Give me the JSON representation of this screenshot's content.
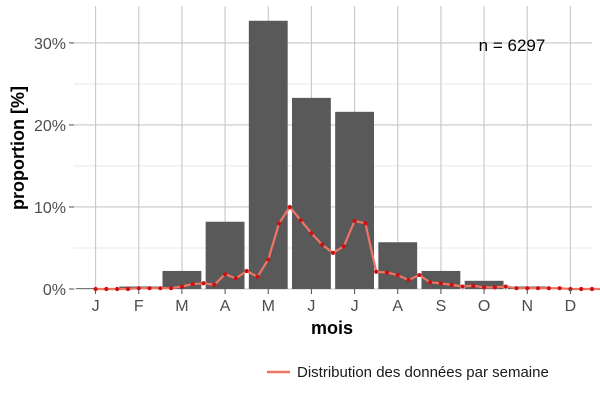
{
  "chart_data": {
    "type": "bar",
    "categories": [
      "J",
      "F",
      "M",
      "A",
      "M",
      "J",
      "J",
      "A",
      "S",
      "O",
      "N",
      "D"
    ],
    "values": [
      0.1,
      0.3,
      2.2,
      8.2,
      32.7,
      23.3,
      21.6,
      5.7,
      2.2,
      1.0,
      0.3,
      0.1
    ],
    "xlabel": "mois",
    "ylabel": "proportion [%]",
    "ylim": [
      0,
      34.5
    ],
    "yticks": [
      0,
      10,
      20,
      30
    ],
    "ytick_labels": [
      "0%",
      "10%",
      "20%",
      "30%"
    ],
    "grid": true,
    "bar_color": "#595959",
    "annotation": "n = 6297",
    "line_series": {
      "name": "Distribution des données par semaine",
      "color": "#ee7466",
      "point_color": "#cc1111",
      "x": [
        0.0,
        0.25,
        0.5,
        0.75,
        1.0,
        1.25,
        1.5,
        1.75,
        2.0,
        2.25,
        2.5,
        2.75,
        3.0,
        3.25,
        3.5,
        3.75,
        4.0,
        4.25,
        4.5,
        4.75,
        5.0,
        5.25,
        5.5,
        5.75,
        6.0,
        6.25,
        6.5,
        6.75,
        7.0,
        7.25,
        7.5,
        7.75,
        8.0,
        8.25,
        8.5,
        8.75,
        9.0,
        9.25,
        9.5,
        9.75,
        10.0,
        10.25,
        10.5,
        10.75,
        11.0,
        11.25,
        11.5,
        11.75
      ],
      "y": [
        0.0,
        0.0,
        0.0,
        0.0,
        0.1,
        0.1,
        0.1,
        0.1,
        0.3,
        0.6,
        0.7,
        0.5,
        1.8,
        1.3,
        2.2,
        1.5,
        3.6,
        8.0,
        10.0,
        8.4,
        6.8,
        5.4,
        4.4,
        5.2,
        8.3,
        8.0,
        2.1,
        2.0,
        1.7,
        1.1,
        1.7,
        0.8,
        0.7,
        0.5,
        0.3,
        0.4,
        0.2,
        0.2,
        0.3,
        0.1,
        0.1,
        0.1,
        0.1,
        0.1,
        0.0,
        0.0,
        0.0,
        0.0
      ]
    },
    "legend": {
      "position": "bottom-right",
      "label": "Distribution des données par semaine"
    }
  }
}
